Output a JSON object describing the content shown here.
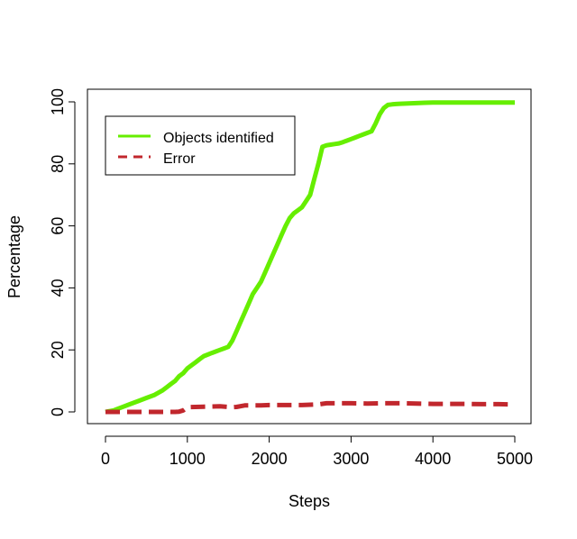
{
  "chart_data": {
    "type": "line",
    "title": "",
    "xlabel": "Steps",
    "ylabel": "Percentage",
    "xlim": [
      0,
      5000
    ],
    "ylim": [
      0,
      100
    ],
    "x_ticks": [
      0,
      1000,
      2000,
      3000,
      4000,
      5000
    ],
    "y_ticks": [
      0,
      20,
      40,
      60,
      80,
      100
    ],
    "x_tick_labels": [
      "0",
      "1000",
      "2000",
      "3000",
      "4000",
      "5000"
    ],
    "y_tick_labels": [
      "0",
      "20",
      "40",
      "60",
      "80",
      "100"
    ],
    "grid": false,
    "legend_position": "top-left",
    "series": [
      {
        "name": "Objects identified",
        "color": "#66ee00",
        "style": "solid",
        "x": [
          0,
          100,
          200,
          300,
          400,
          500,
          600,
          700,
          750,
          800,
          850,
          900,
          950,
          1000,
          1050,
          1100,
          1150,
          1200,
          1250,
          1300,
          1350,
          1400,
          1450,
          1500,
          1550,
          1600,
          1650,
          1700,
          1750,
          1800,
          1850,
          1900,
          1950,
          2000,
          2050,
          2100,
          2150,
          2200,
          2250,
          2300,
          2350,
          2400,
          2450,
          2500,
          2550,
          2600,
          2650,
          2700,
          2750,
          2800,
          2850,
          2900,
          2950,
          3000,
          3050,
          3100,
          3150,
          3200,
          3250,
          3300,
          3350,
          3400,
          3450,
          3500,
          3550,
          3600,
          3700,
          3800,
          3900,
          4000,
          4100,
          4200,
          4300,
          4400,
          4500,
          4600,
          4700,
          4800,
          4900,
          5000
        ],
        "values": [
          0,
          0.5,
          1.5,
          2.5,
          3.5,
          4.5,
          5.5,
          7,
          8,
          9,
          10,
          11.5,
          12.5,
          14,
          15,
          16,
          17,
          18,
          18.5,
          19,
          19.5,
          20,
          20.5,
          21,
          23,
          26,
          29,
          32,
          35,
          38,
          40,
          42,
          45,
          48,
          51,
          54,
          57,
          60,
          62.5,
          64,
          65,
          66,
          68,
          70,
          75,
          80,
          85.5,
          86,
          86.2,
          86.4,
          86.6,
          87,
          87.5,
          88,
          88.5,
          89,
          89.5,
          90,
          90.5,
          93,
          96,
          98,
          99,
          99.2,
          99.3,
          99.4,
          99.5,
          99.6,
          99.7,
          99.8,
          99.8,
          99.8,
          99.8,
          99.8,
          99.8,
          99.8,
          99.8,
          99.8,
          99.8,
          99.8
        ]
      },
      {
        "name": "Error",
        "color": "#c1272d",
        "style": "dashed",
        "x": [
          0,
          500,
          850,
          900,
          950,
          1000,
          1200,
          1400,
          1550,
          1600,
          1700,
          1800,
          1900,
          2000,
          2200,
          2400,
          2600,
          2700,
          2800,
          3000,
          3200,
          3400,
          3600,
          3800,
          4000,
          4200,
          4400,
          4600,
          4800,
          5000
        ],
        "values": [
          0,
          0,
          0,
          0.1,
          0.5,
          1.5,
          1.7,
          1.8,
          1.5,
          1.6,
          2.1,
          2.1,
          2.1,
          2.2,
          2.2,
          2.2,
          2.4,
          2.8,
          2.8,
          2.8,
          2.7,
          2.8,
          2.8,
          2.7,
          2.6,
          2.6,
          2.6,
          2.5,
          2.5,
          2.4
        ]
      }
    ]
  }
}
